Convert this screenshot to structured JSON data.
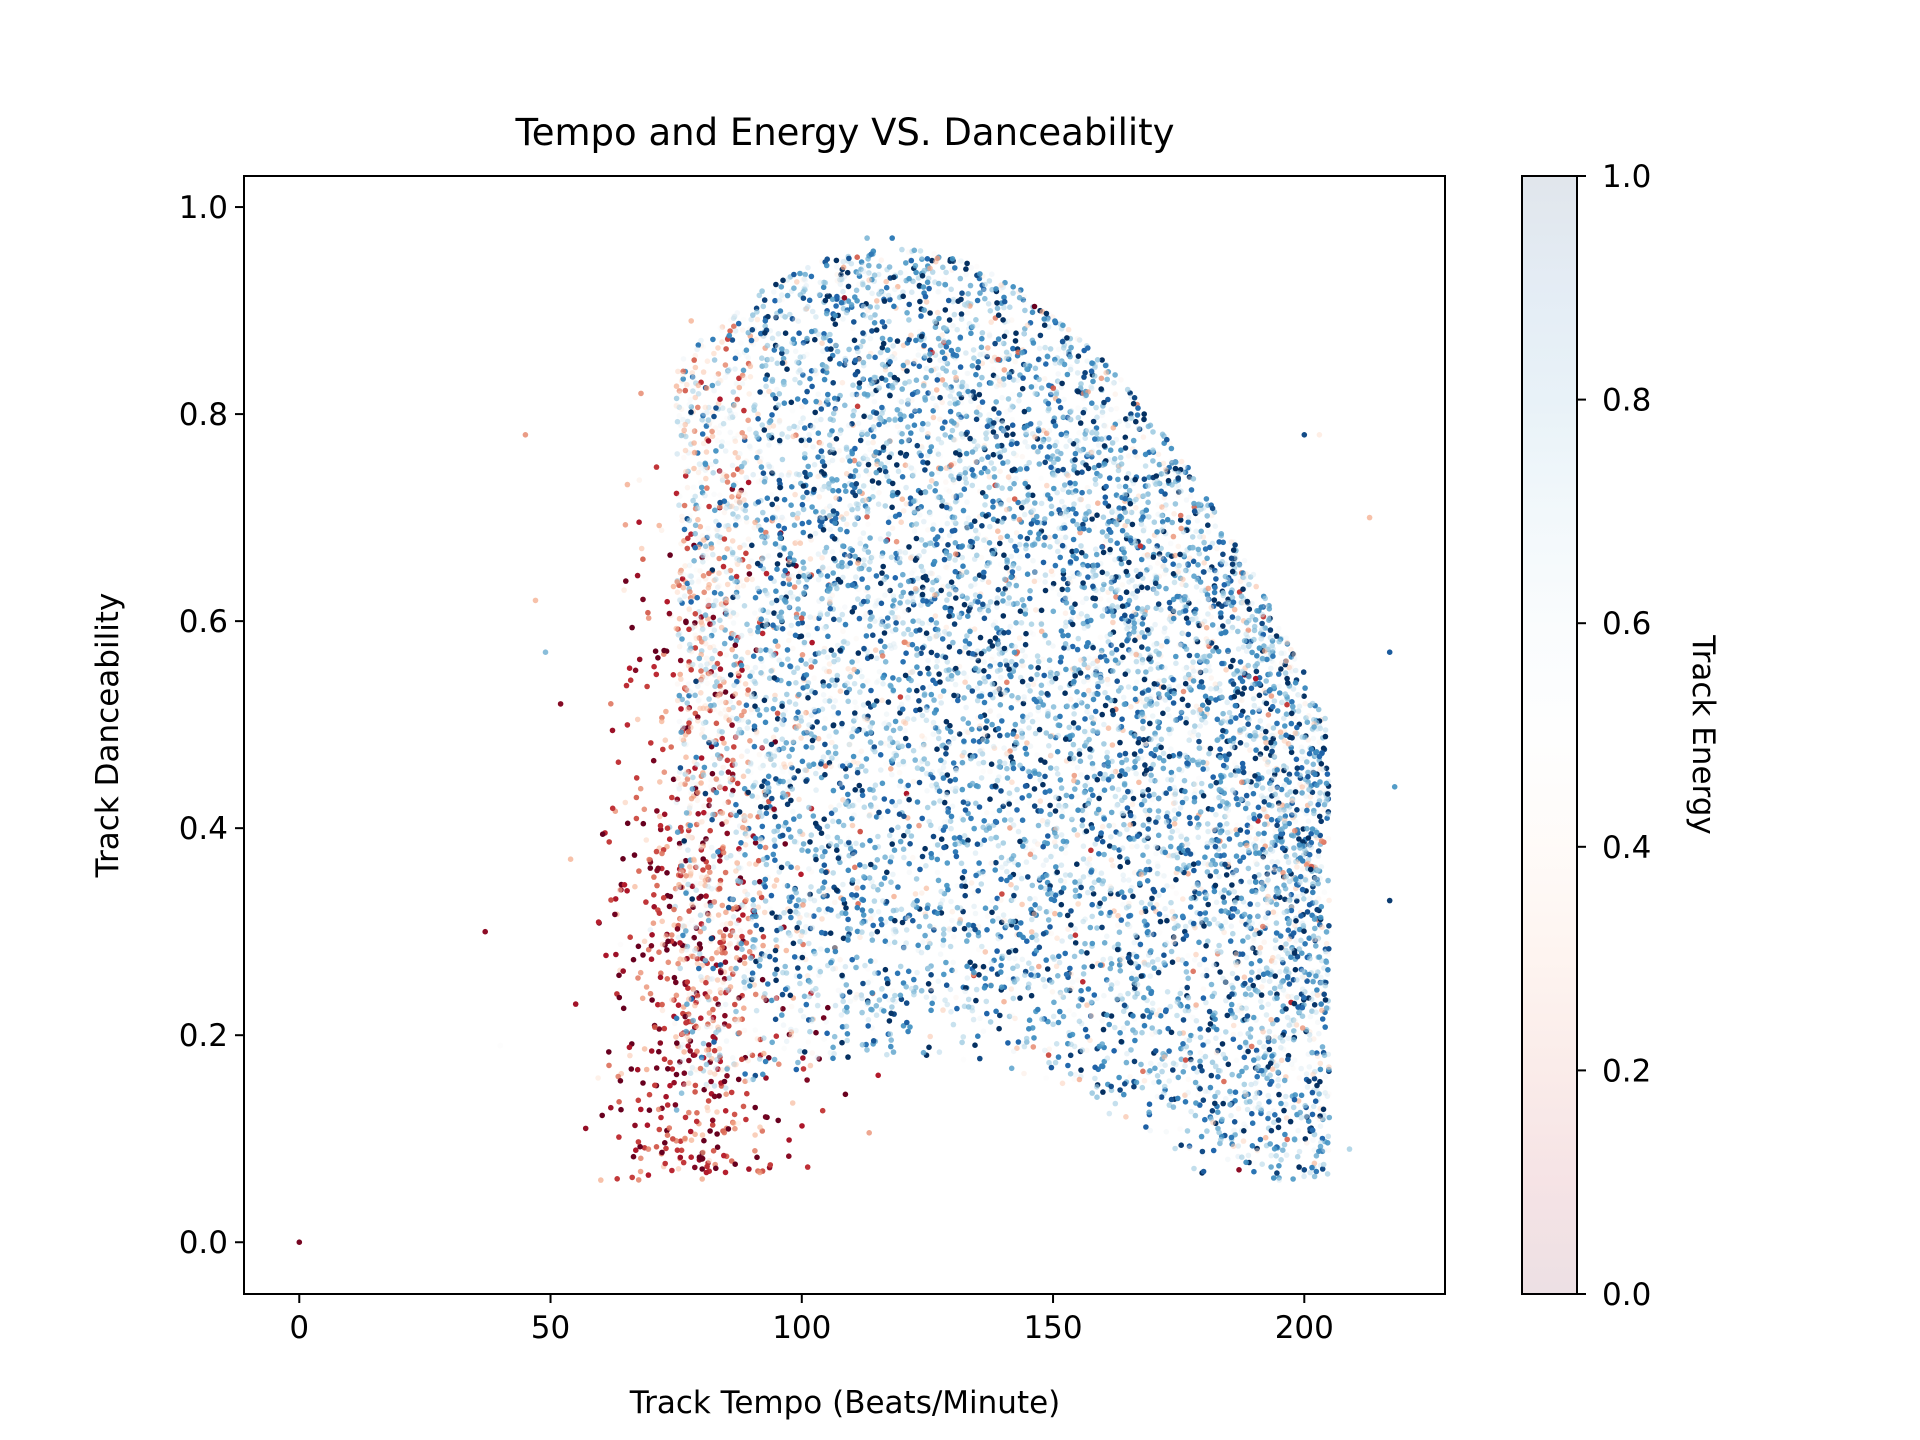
{
  "chart_data": {
    "type": "scatter",
    "title": "Tempo and Energy VS. Danceability",
    "xlabel": "Track Tempo (Beats/Minute)",
    "ylabel": "Track Danceability",
    "xlim": [
      -11,
      228
    ],
    "ylim": [
      -0.05,
      1.03
    ],
    "xticks": [
      0,
      50,
      100,
      150,
      200
    ],
    "xtick_labels": [
      "0",
      "50",
      "100",
      "150",
      "200"
    ],
    "yticks": [
      0.0,
      0.2,
      0.4,
      0.6,
      0.8,
      1.0
    ],
    "ytick_labels": [
      "0.0",
      "0.2",
      "0.4",
      "0.6",
      "0.8",
      "1.0"
    ],
    "grid": false,
    "colormap": "RdBu",
    "colorbar": {
      "label": "Track Energy",
      "range": [
        0.0,
        1.0
      ],
      "ticks": [
        0.0,
        0.2,
        0.4,
        0.6,
        0.8,
        1.0
      ],
      "tick_labels": [
        "0.0",
        "0.2",
        "0.4",
        "0.6",
        "0.8",
        "1.0"
      ]
    },
    "colors": {
      "low_energy": "#67001f",
      "mid_low": "#d6604d",
      "mid": "#f7f7f7",
      "mid_high": "#4393c3",
      "high_energy": "#053061"
    },
    "series": [
      {
        "color_by": "energy",
        "points": [
          [
            0,
            0.0,
            0.02
          ],
          [
            37,
            0.3,
            0.05
          ],
          [
            52,
            0.52,
            0.04
          ],
          [
            55,
            0.23,
            0.08
          ],
          [
            45,
            0.78,
            0.25
          ],
          [
            47,
            0.62,
            0.3
          ],
          [
            49,
            0.57,
            0.75
          ],
          [
            40,
            0.19,
            0.5
          ],
          [
            54,
            0.37,
            0.3
          ],
          [
            57,
            0.11,
            0.06
          ],
          [
            60,
            0.06,
            0.3
          ],
          [
            62,
            0.13,
            0.07
          ],
          [
            68,
            0.82,
            0.25
          ],
          [
            78,
            0.89,
            0.3
          ],
          [
            118,
            0.97,
            0.85
          ],
          [
            125,
            0.95,
            0.9
          ],
          [
            130,
            0.95,
            0.8
          ],
          [
            113,
            0.97,
            0.75
          ],
          [
            217,
            0.57,
            0.92
          ],
          [
            218,
            0.44,
            0.8
          ],
          [
            217,
            0.33,
            0.98
          ],
          [
            200,
            0.07,
            0.95
          ],
          [
            209,
            0.09,
            0.7
          ],
          [
            213,
            0.7,
            0.3
          ],
          [
            203,
            0.78,
            0.4
          ],
          [
            200,
            0.78,
            0.95
          ],
          [
            187,
            0.07,
            0.05
          ],
          [
            195,
            0.06,
            0.6
          ]
        ]
      }
    ]
  }
}
